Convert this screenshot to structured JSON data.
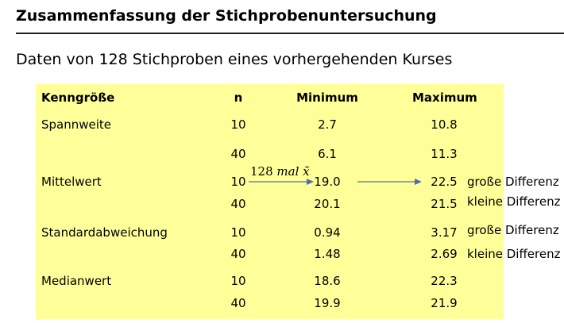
{
  "title": "Zusammenfassung der Stichprobenuntersuchung",
  "subtitle": "Daten von 128 Stichproben eines vorhergehenden Kurses",
  "table": {
    "headers": {
      "kenngroesse": "Kenngröße",
      "n": "n",
      "minimum": "Minimum",
      "maximum": "Maximum"
    },
    "rows": [
      {
        "label": "Spannweite",
        "n": "10",
        "min": "2.7",
        "max": "10.8",
        "note": ""
      },
      {
        "label": "",
        "n": "40",
        "min": "6.1",
        "max": "11.3",
        "note": ""
      },
      {
        "label": "Mittelwert",
        "n": "10",
        "min": "19.0",
        "max": "22.5",
        "note": "große Differenz"
      },
      {
        "label": "",
        "n": "40",
        "min": "20.1",
        "max": "21.5",
        "note": "kleine Differenz"
      },
      {
        "label": "Standardabweichung",
        "n": "10",
        "min": "0.94",
        "max": "3.17",
        "note": "große Differenz"
      },
      {
        "label": "",
        "n": "40",
        "min": "1.48",
        "max": "2.69",
        "note": "kleine Differenz"
      },
      {
        "label": "Medianwert",
        "n": "10",
        "min": "18.6",
        "max": "22.3",
        "note": ""
      },
      {
        "label": "",
        "n": "40",
        "min": "19.9",
        "max": "21.9",
        "note": ""
      }
    ]
  },
  "annotation": {
    "number": "128",
    "word": "mal",
    "symbol": "x̄"
  },
  "colors": {
    "panel": "#ffff99",
    "arrow": "#4a6fb5"
  }
}
